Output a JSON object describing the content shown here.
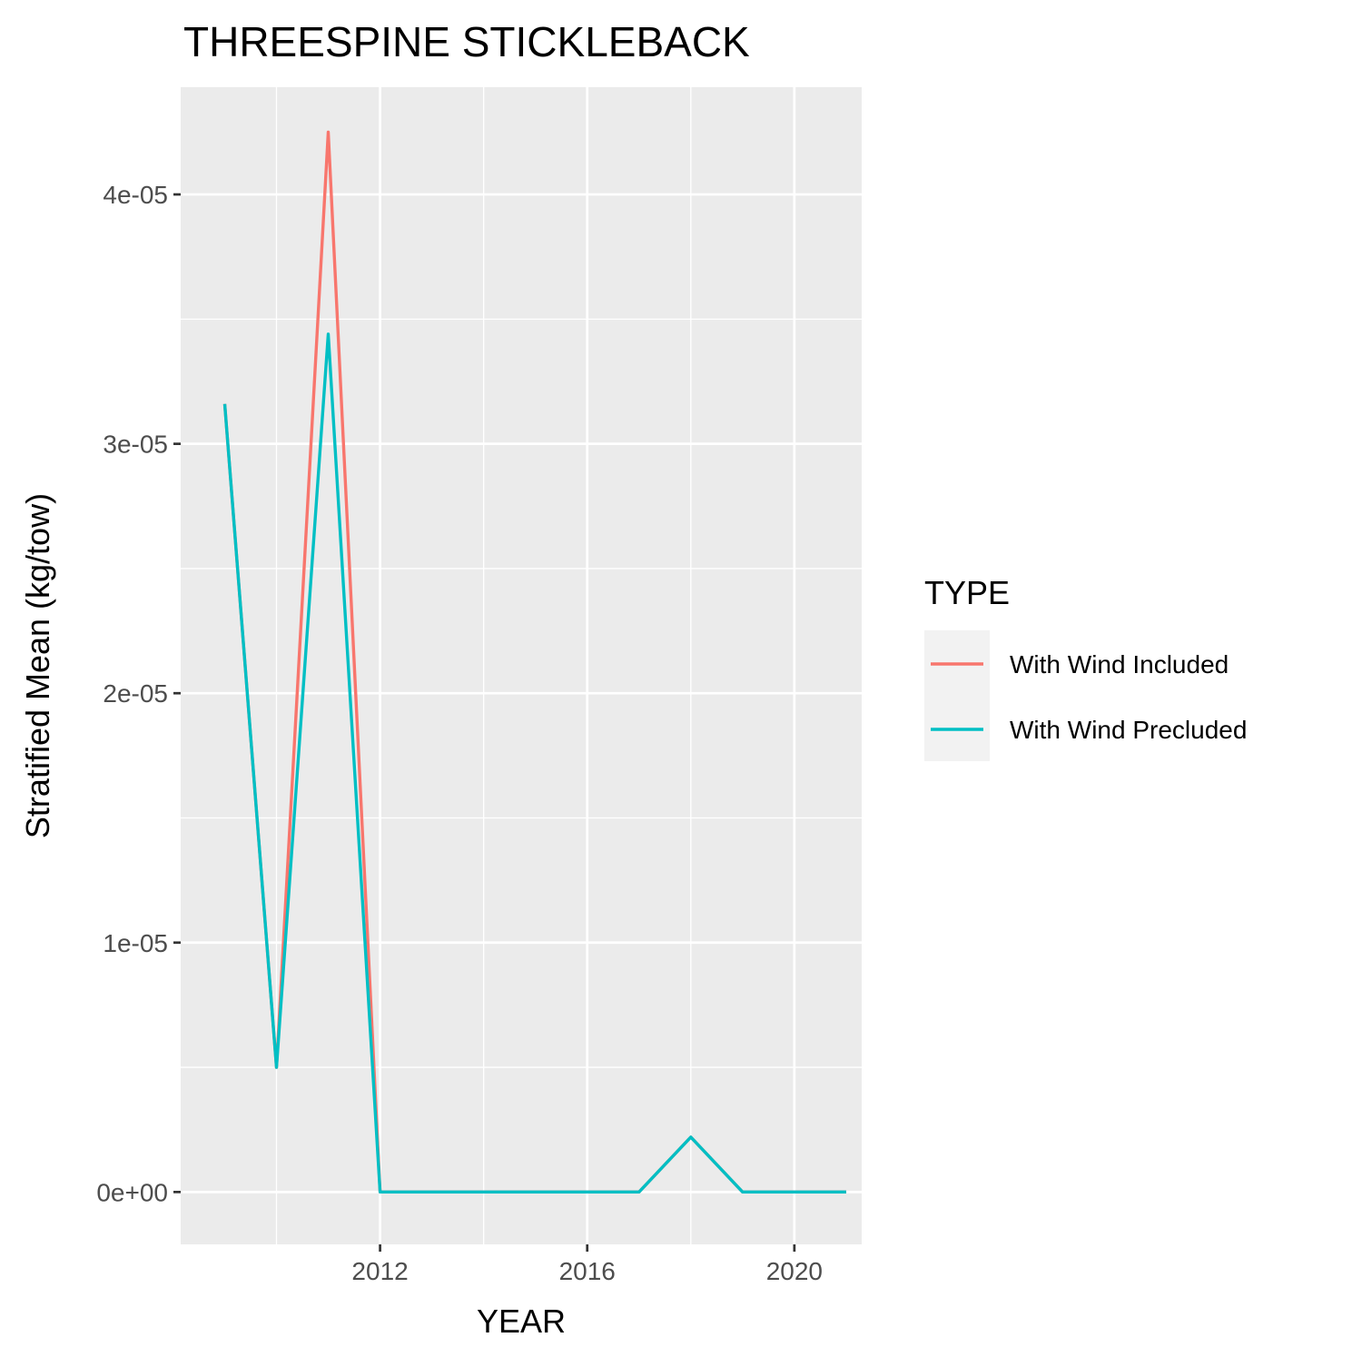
{
  "chart_data": {
    "type": "line",
    "title": "THREESPINE STICKLEBACK",
    "xlabel": "YEAR",
    "ylabel": "Stratified Mean (kg/tow)",
    "x": [
      2009,
      2010,
      2011,
      2012,
      2013,
      2014,
      2015,
      2016,
      2017,
      2018,
      2019,
      2020,
      2021
    ],
    "xlim": [
      2008.15,
      2021.3
    ],
    "ylim": [
      -2.1e-06,
      4.43e-05
    ],
    "x_ticks": [
      2012,
      2016,
      2020
    ],
    "x_tick_labels": [
      "2012",
      "2016",
      "2020"
    ],
    "y_ticks": [
      0,
      1e-05,
      2e-05,
      3e-05,
      4e-05
    ],
    "y_tick_labels": [
      "0e+00",
      "1e-05",
      "2e-05",
      "3e-05",
      "4e-05"
    ],
    "grid": true,
    "legend": {
      "title": "TYPE",
      "position": "right"
    },
    "series": [
      {
        "name": "With Wind Included",
        "color": "#F8766D",
        "values": [
          3.16e-05,
          5e-06,
          4.25e-05,
          0,
          0,
          0,
          0,
          0,
          0,
          2.2e-06,
          0,
          0,
          0
        ]
      },
      {
        "name": "With Wind Precluded",
        "color": "#00BFC4",
        "values": [
          3.16e-05,
          5e-06,
          3.44e-05,
          0,
          0,
          0,
          0,
          0,
          0,
          2.2e-06,
          0,
          0,
          0
        ]
      }
    ]
  }
}
